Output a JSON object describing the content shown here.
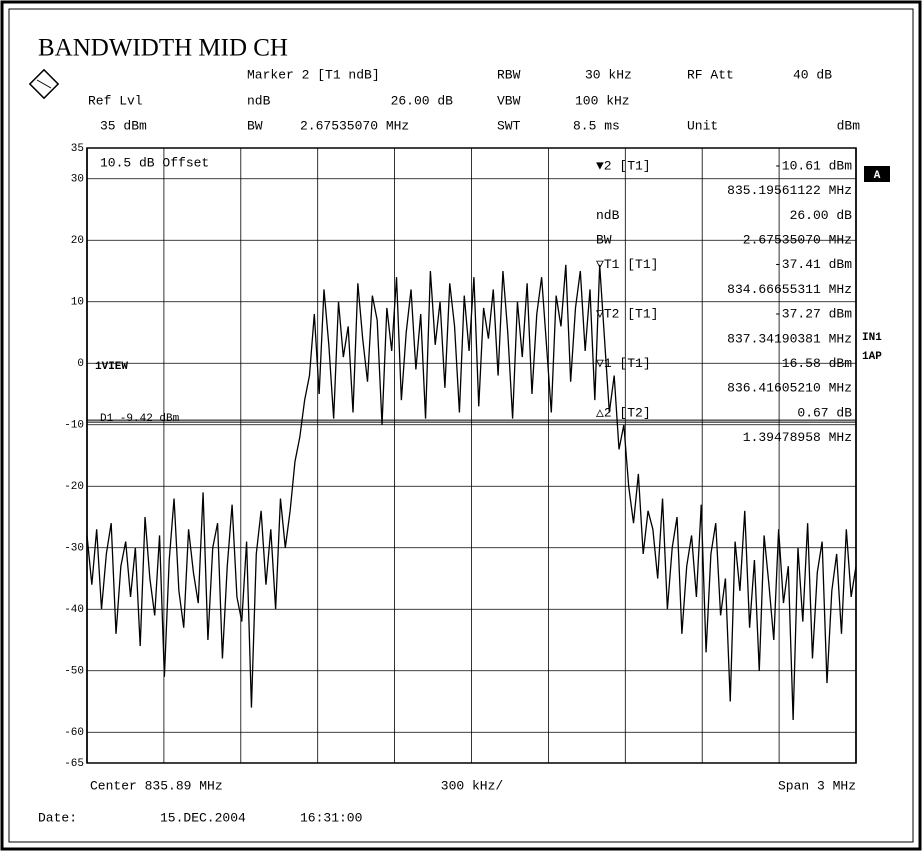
{
  "chart_data": {
    "type": "line",
    "title": "BANDWIDTH MID CH",
    "header": {
      "marker": "Marker 2 [T1 ndB]",
      "rbw_label": "RBW",
      "rbw": "30 kHz",
      "rf_att_label": "RF Att",
      "rf_att": "40 dB",
      "ref_lvl_label": "Ref Lvl",
      "ndb_label": "ndB",
      "ndb": "26.00 dB",
      "vbw_label": "VBW",
      "vbw": "100 kHz",
      "ref_lvl": "35 dBm",
      "bw_label": "BW",
      "bw": "2.67535070 MHz",
      "swt_label": "SWT",
      "swt": "8.5 ms",
      "unit_label": "Unit",
      "unit": "dBm"
    },
    "marker_info": [
      {
        "label": "▼2 [T1]",
        "lines": [
          "-10.61 dBm",
          "835.19561122 MHz"
        ]
      },
      {
        "label": "ndB",
        "lines": [
          "26.00 dB"
        ]
      },
      {
        "label": "BW",
        "lines": [
          "2.67535070 MHz"
        ]
      },
      {
        "label": "▽T1 [T1]",
        "lines": [
          "-37.41 dBm",
          "834.66655311 MHz"
        ]
      },
      {
        "label": "▽T2 [T1]",
        "lines": [
          "-37.27 dBm",
          "837.34190381 MHz"
        ]
      },
      {
        "label": "▽1 [T1]",
        "lines": [
          "16.58 dBm",
          "836.41605210 MHz"
        ]
      },
      {
        "label": "△2 [T2]",
        "lines": [
          "0.67 dB",
          "1.39478958 MHz"
        ]
      }
    ],
    "offset_note": "10.5 dB Offset",
    "view_label": "1VIEW",
    "display_line": {
      "label": "D1 -9.42 dBm",
      "value": -9.42
    },
    "side_labels": {
      "a": "A",
      "in1": "IN1",
      "ap": "1AP"
    },
    "x_labels": {
      "center": "Center 835.89 MHz",
      "div": "300 kHz/",
      "span": "Span 3 MHz"
    },
    "date_label": "Date:",
    "date": "15.DEC.2004",
    "time": "16:31:00",
    "ylim": [
      -65,
      35
    ],
    "yticks": [
      35,
      30,
      20,
      10,
      0,
      -10,
      -20,
      -30,
      -40,
      -50,
      -60,
      -65
    ],
    "grid": true,
    "color": "#000000",
    "values": [
      -28,
      -36,
      -27,
      -40,
      -31,
      -26,
      -44,
      -33,
      -29,
      -38,
      -30,
      -46,
      -25,
      -35,
      -41,
      -28,
      -51,
      -32,
      -22,
      -37,
      -43,
      -27,
      -34,
      -39,
      -21,
      -45,
      -30,
      -26,
      -48,
      -33,
      -23,
      -38,
      -42,
      -29,
      -56,
      -31,
      -24,
      -36,
      -27,
      -40,
      -22,
      -30,
      -24,
      -16,
      -12,
      -6,
      -2,
      8,
      -5,
      12,
      3,
      -9,
      10,
      1,
      6,
      -8,
      13,
      4,
      -3,
      11,
      7,
      -10,
      9,
      2,
      14,
      -6,
      5,
      12,
      -1,
      8,
      -9,
      15,
      3,
      10,
      -4,
      13,
      6,
      -8,
      11,
      2,
      14,
      -7,
      9,
      4,
      12,
      -2,
      15,
      5,
      -9,
      10,
      1,
      13,
      -5,
      8,
      14,
      3,
      -8,
      11,
      6,
      16,
      -3,
      9,
      15,
      2,
      12,
      -6,
      16,
      4,
      -8,
      -2,
      -14,
      -10,
      -20,
      -26,
      -18,
      -31,
      -24,
      -27,
      -35,
      -22,
      -40,
      -30,
      -25,
      -44,
      -33,
      -28,
      -38,
      -23,
      -47,
      -31,
      -26,
      -41,
      -35,
      -55,
      -29,
      -37,
      -24,
      -43,
      -32,
      -50,
      -28,
      -36,
      -45,
      -27,
      -39,
      -33,
      -58,
      -30,
      -42,
      -26,
      -48,
      -34,
      -29,
      -52,
      -37,
      -31,
      -44,
      -27,
      -38,
      -33
    ]
  }
}
